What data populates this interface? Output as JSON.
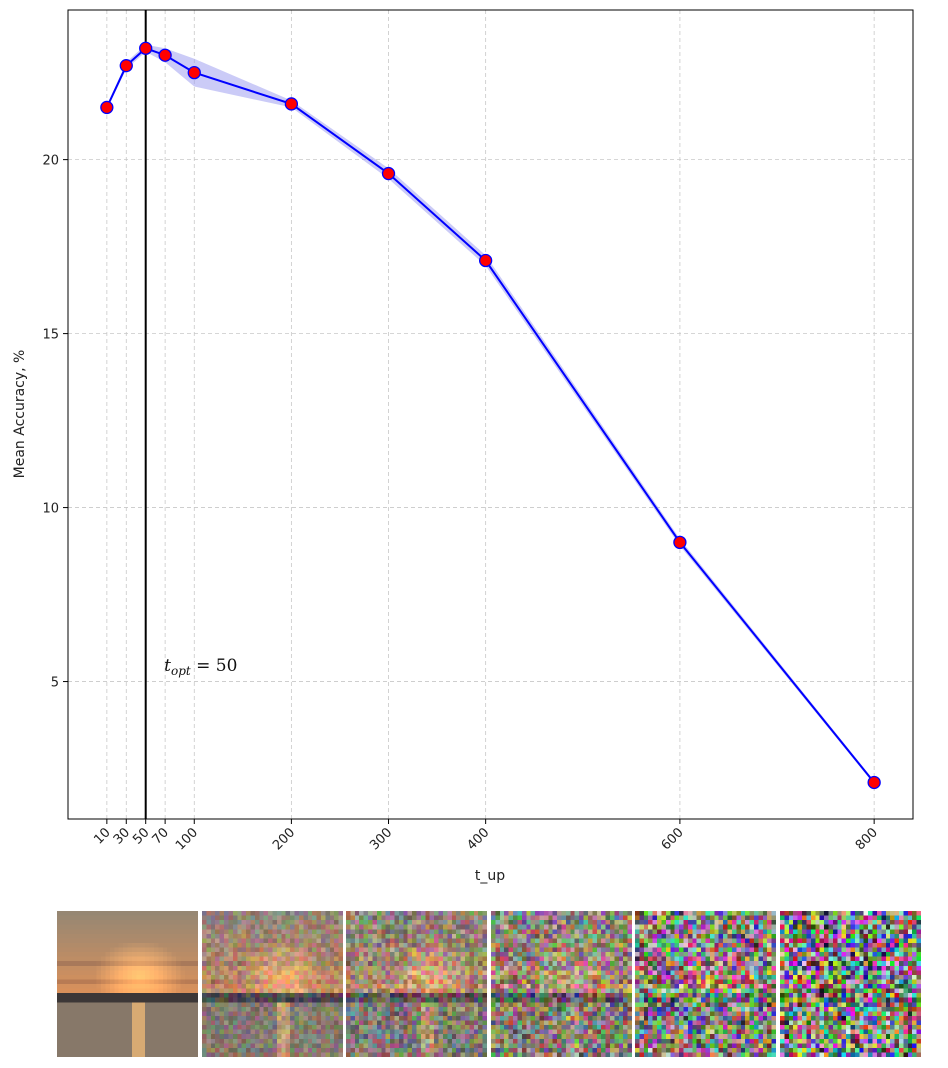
{
  "chart_data": {
    "type": "line",
    "xlabel": "t_up",
    "ylabel": "Mean Accuracy, %",
    "x_ticks": [
      10,
      30,
      50,
      70,
      100,
      200,
      300,
      400,
      600,
      800
    ],
    "y_ticks": [
      5,
      10,
      15,
      20
    ],
    "xlim": [
      -30,
      840
    ],
    "ylim": [
      1.05,
      24.3
    ],
    "grid": true,
    "series": [
      {
        "x": [
          10,
          30,
          50,
          70,
          100,
          200,
          300,
          400,
          600,
          800
        ],
        "y": [
          21.5,
          22.7,
          23.2,
          23.0,
          22.5,
          21.6,
          19.6,
          17.1,
          9.0,
          2.1
        ],
        "band_low": [
          21.45,
          22.6,
          23.1,
          22.8,
          22.1,
          21.5,
          19.45,
          16.95,
          8.9,
          2.05
        ],
        "band_high": [
          21.55,
          22.8,
          23.3,
          23.2,
          22.9,
          21.7,
          19.75,
          17.25,
          9.1,
          2.15
        ],
        "line_color": "#0000ff",
        "marker_color": "#ff0000",
        "band_color": "#a0a0f0"
      }
    ],
    "vline_x": 50,
    "annotation": {
      "text": "t_opt = 50",
      "main": "t",
      "sub": "opt",
      "rest": " = 50",
      "x": 70,
      "y": 5.3
    }
  },
  "thumbnails": {
    "count": 6,
    "noise_levels": [
      0.0,
      0.25,
      0.4,
      0.55,
      0.8,
      0.95
    ]
  }
}
